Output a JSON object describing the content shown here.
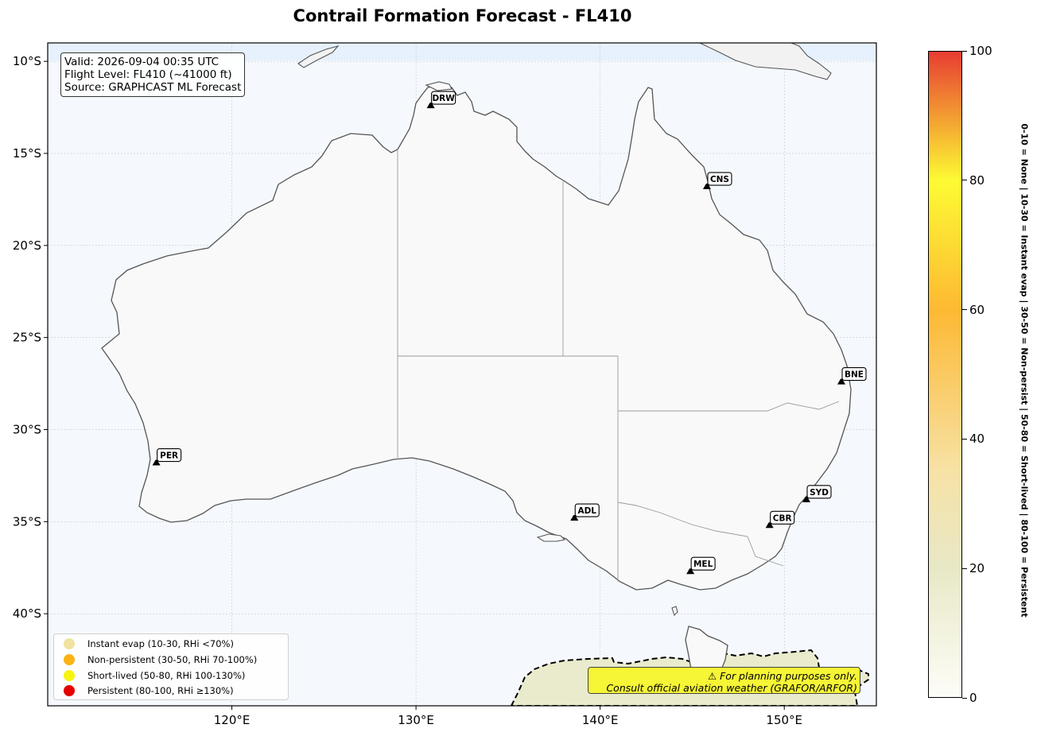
{
  "title": "Contrail Formation Forecast - FL410",
  "info_box": {
    "line1": "Valid: 2026-09-04 00:35 UTC",
    "line2": "Flight Level: FL410 (~41000 ft)",
    "line3": "Source: GRAPHCAST ML Forecast"
  },
  "map": {
    "extent": {
      "lon_min": 110,
      "lon_max": 155,
      "lat_min": -45,
      "lat_max": -9
    },
    "lat_ticks": [
      {
        "value": -10,
        "label": "10°S"
      },
      {
        "value": -15,
        "label": "15°S"
      },
      {
        "value": -20,
        "label": "20°S"
      },
      {
        "value": -25,
        "label": "25°S"
      },
      {
        "value": -30,
        "label": "30°S"
      },
      {
        "value": -35,
        "label": "35°S"
      },
      {
        "value": -40,
        "label": "40°S"
      }
    ],
    "lon_ticks": [
      {
        "value": 120,
        "label": "120°E"
      },
      {
        "value": 130,
        "label": "130°E"
      },
      {
        "value": 140,
        "label": "140°E"
      },
      {
        "value": 150,
        "label": "150°E"
      }
    ],
    "colors": {
      "ocean": "#f5f9fe",
      "land": "#f9f9f9",
      "coast": "#555555",
      "border": "#999999",
      "contrail_zone": "#e9ebcc"
    }
  },
  "cities": [
    {
      "code": "DRW",
      "lon": 130.8,
      "lat": -12.5
    },
    {
      "code": "CNS",
      "lon": 145.8,
      "lat": -16.9
    },
    {
      "code": "BNE",
      "lon": 153.1,
      "lat": -27.5
    },
    {
      "code": "PER",
      "lon": 115.9,
      "lat": -31.9
    },
    {
      "code": "ADL",
      "lon": 138.6,
      "lat": -34.9
    },
    {
      "code": "SYD",
      "lon": 151.2,
      "lat": -33.9
    },
    {
      "code": "CBR",
      "lon": 149.2,
      "lat": -35.3
    },
    {
      "code": "MEL",
      "lon": 144.9,
      "lat": -37.8
    }
  ],
  "legend": {
    "items": [
      {
        "label": "Instant evap (10-30, RHi <70%)",
        "color": "#f0e3a0"
      },
      {
        "label": "Non-persistent (30-50, RHi 70-100%)",
        "color": "#fcb414"
      },
      {
        "label": "Short-lived (50-80, RHi 100-130%)",
        "color": "#f7f410"
      },
      {
        "label": "Persistent (80-100, RHi ≥130%)",
        "color": "#e50000"
      }
    ]
  },
  "disclaimer": {
    "line1": "⚠ For planning purposes only.",
    "line2": "Consult official aviation weather (GRAFOR/ARFOR)"
  },
  "colorbar": {
    "min": 0,
    "max": 100,
    "ticks": [
      "0",
      "20",
      "40",
      "60",
      "80",
      "100"
    ],
    "caption": "0-10 = None  |  10-30 = Instant evap  |  30-50 = Non-persist  |  50-80 = Short-lived  |  80-100 = Persistent",
    "stops": [
      {
        "value": 0,
        "color": "#fdfdf8"
      },
      {
        "value": 20,
        "color": "#e8e8c6"
      },
      {
        "value": 35,
        "color": "#f7e2a6"
      },
      {
        "value": 60,
        "color": "#fdb933"
      },
      {
        "value": 80,
        "color": "#fdfb33"
      },
      {
        "value": 100,
        "color": "#e83d32"
      }
    ]
  }
}
